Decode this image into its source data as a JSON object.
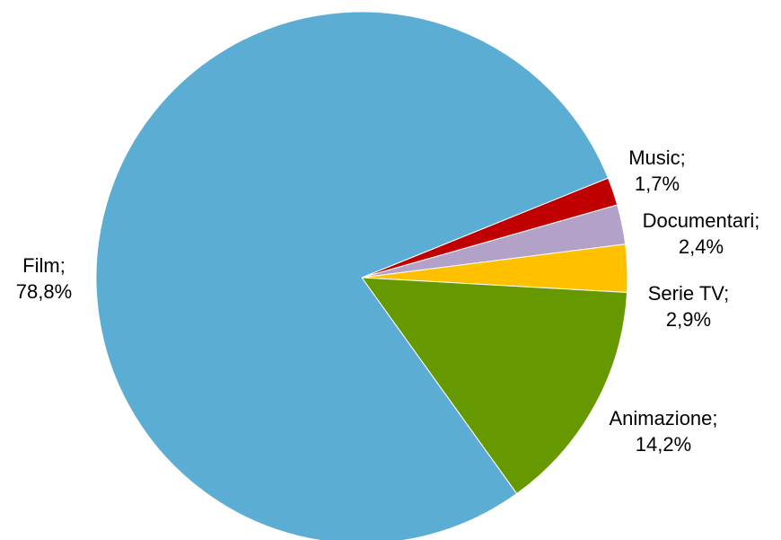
{
  "chart_data": {
    "type": "pie",
    "title": "",
    "categories": [
      "Film",
      "Animazione",
      "Serie TV",
      "Documentari",
      "Music"
    ],
    "values": [
      78.8,
      14.2,
      2.9,
      2.4,
      1.7
    ],
    "unit": "%",
    "labels": [
      {
        "name": "Film;",
        "value": "78,8%"
      },
      {
        "name": "Animazione;",
        "value": "14,2%"
      },
      {
        "name": "Serie TV;",
        "value": "2,9%"
      },
      {
        "name": "Documentari;",
        "value": "2,4%"
      },
      {
        "name": "Music;",
        "value": "1,7%"
      }
    ],
    "colors": [
      "#5BADD3",
      "#669900",
      "#FFC000",
      "#B3A2C7",
      "#C00000"
    ],
    "legend": "none",
    "label_position": "outside"
  }
}
